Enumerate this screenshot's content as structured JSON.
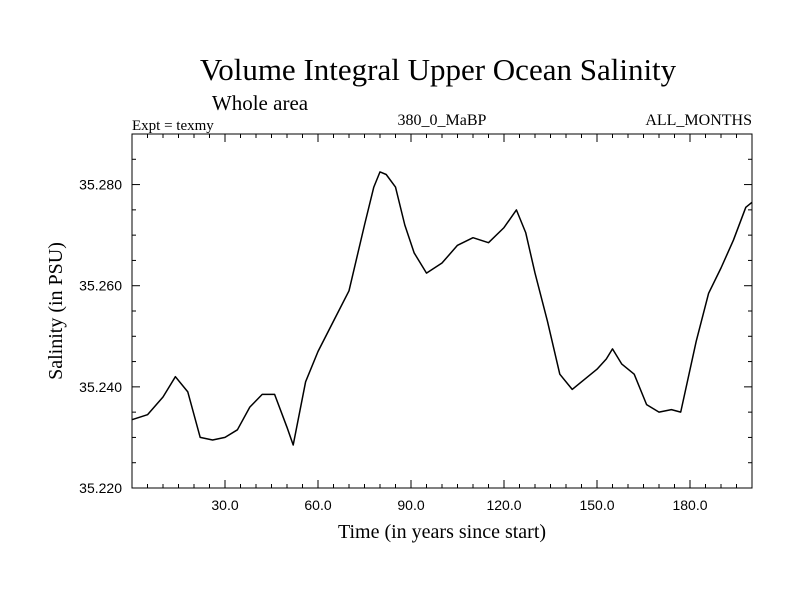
{
  "chart_data": {
    "type": "line",
    "title": "Volume Integral Upper Ocean Salinity",
    "subtitle": "Whole area",
    "experiment_label": "Expt = texmy",
    "center_label": "380_0_MaBP",
    "right_label": "ALL_MONTHS",
    "xlabel": "Time (in years since start)",
    "ylabel": "Salinity (in PSU)",
    "xlim": [
      0,
      200
    ],
    "ylim": [
      35.22,
      35.29
    ],
    "x_ticks": [
      30.0,
      60.0,
      90.0,
      120.0,
      150.0,
      180.0
    ],
    "x_tick_labels": [
      "30.0",
      "60.0",
      "90.0",
      "120.0",
      "150.0",
      "180.0"
    ],
    "y_ticks": [
      35.22,
      35.24,
      35.26,
      35.28
    ],
    "y_tick_labels": [
      "35.220",
      "35.240",
      "35.260",
      "35.280"
    ],
    "grid": false,
    "series": [
      {
        "name": "Salinity",
        "color": "#000000",
        "x": [
          0,
          5,
          10,
          14,
          18,
          22,
          26,
          30,
          34,
          38,
          42,
          46,
          50,
          52,
          56,
          60,
          65,
          70,
          75,
          78,
          80,
          82,
          85,
          88,
          91,
          95,
          100,
          105,
          110,
          115,
          120,
          124,
          127,
          130,
          134,
          138,
          142,
          146,
          150,
          153,
          155,
          158,
          162,
          166,
          170,
          174,
          177,
          182,
          186,
          190,
          194,
          198,
          200
        ],
        "values": [
          35.2335,
          35.2345,
          35.238,
          35.242,
          35.239,
          35.23,
          35.2295,
          35.23,
          35.2315,
          35.236,
          35.2385,
          35.2385,
          35.232,
          35.2285,
          35.241,
          35.247,
          35.253,
          35.259,
          35.272,
          35.2795,
          35.2825,
          35.282,
          35.2795,
          35.272,
          35.2665,
          35.2625,
          35.2645,
          35.268,
          35.2695,
          35.2685,
          35.2715,
          35.275,
          35.2705,
          35.2625,
          35.253,
          35.2425,
          35.2395,
          35.2415,
          35.2435,
          35.2455,
          35.2475,
          35.2445,
          35.2425,
          35.2365,
          35.235,
          35.2355,
          35.235,
          35.249,
          35.2585,
          35.2635,
          35.269,
          35.2755,
          35.2765
        ]
      }
    ]
  }
}
